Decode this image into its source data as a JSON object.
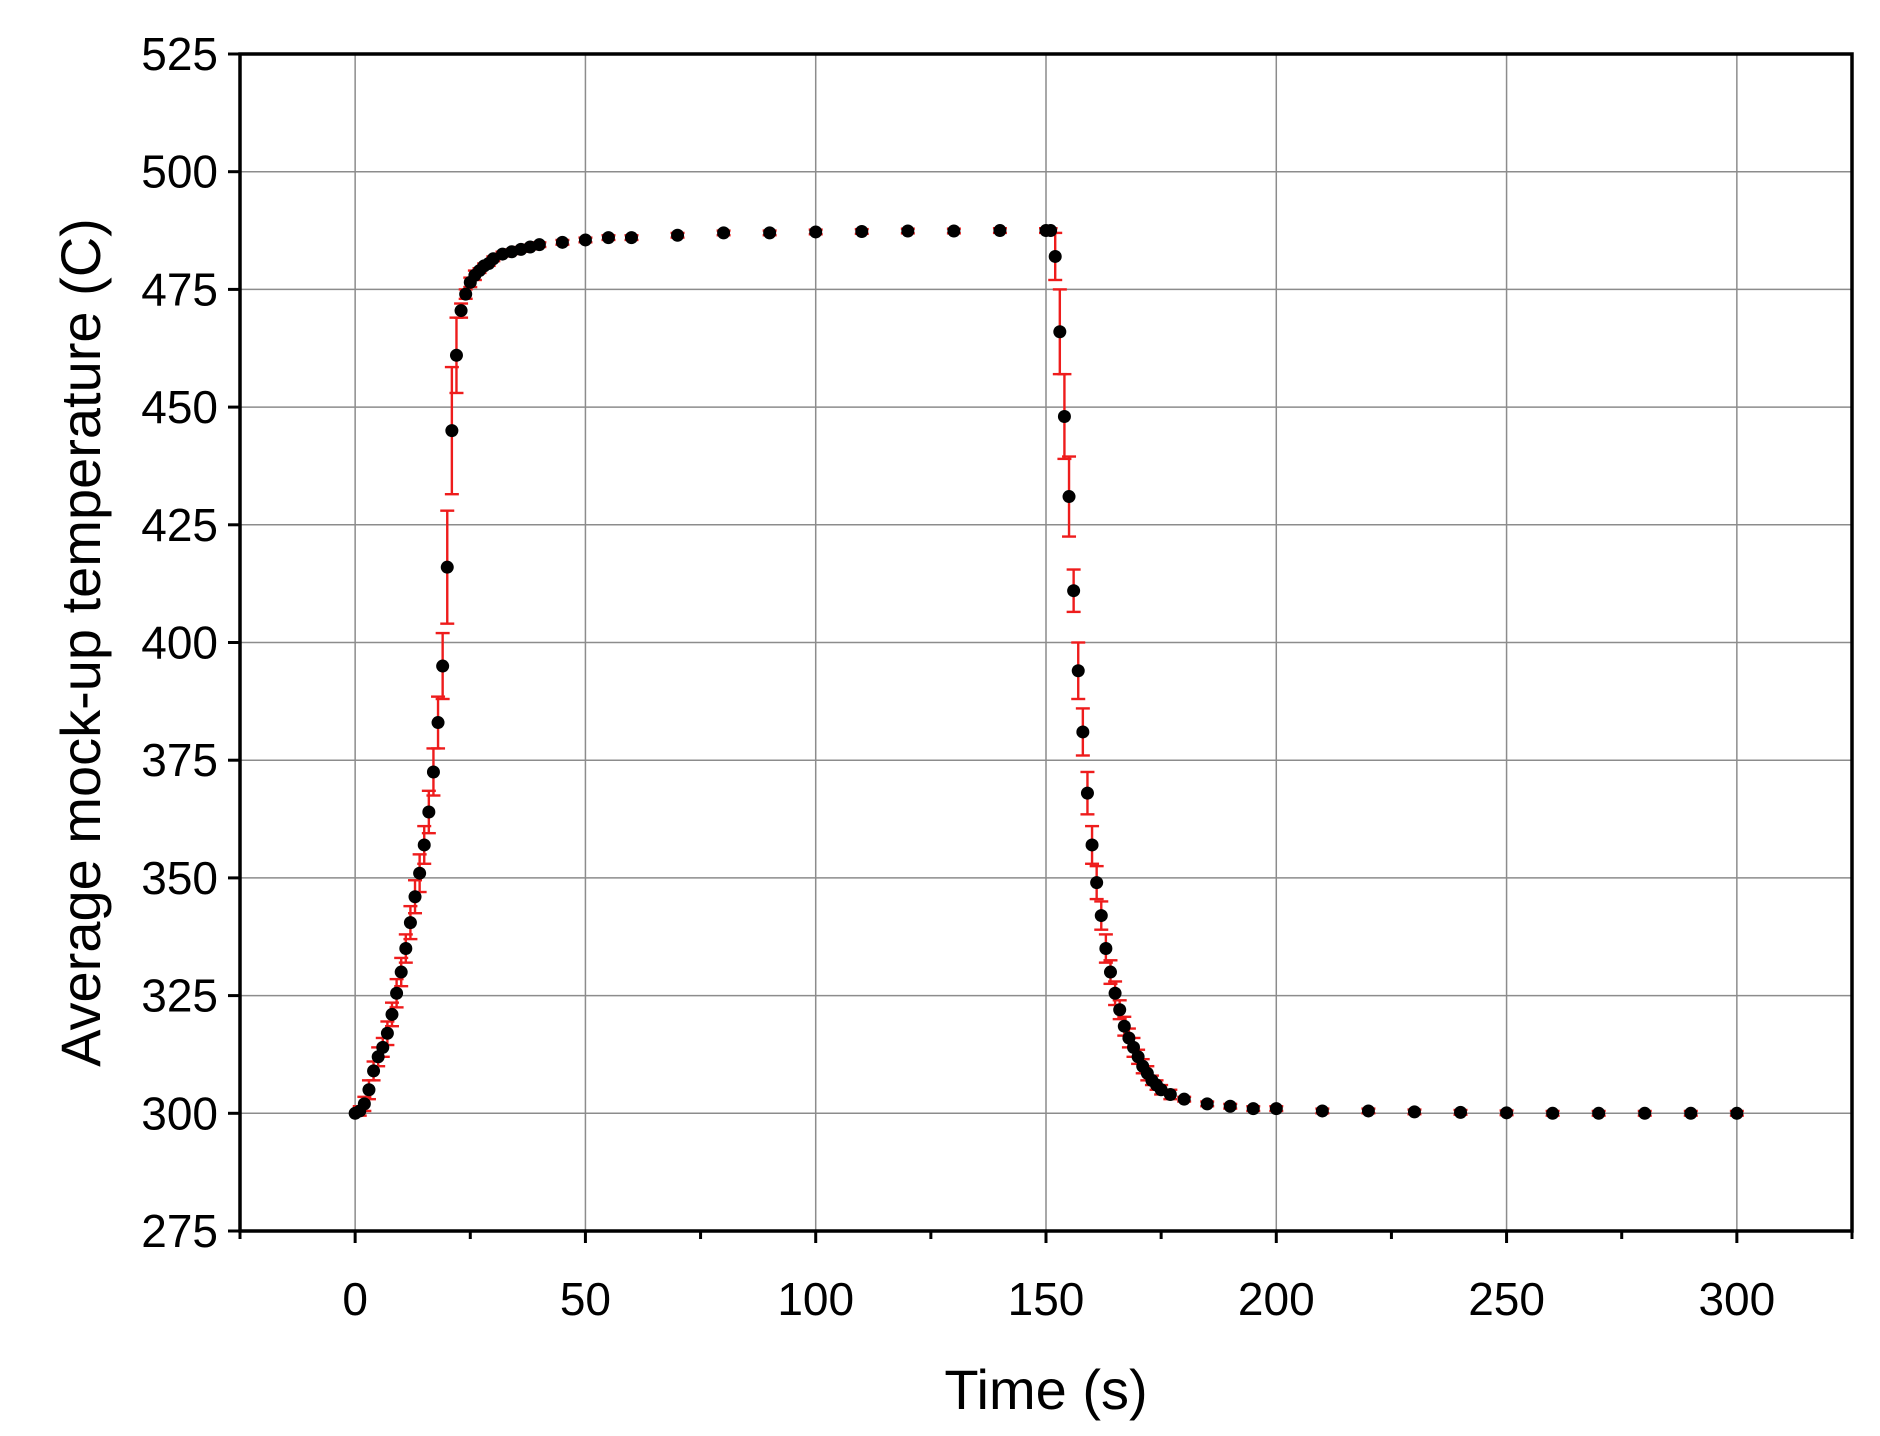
{
  "chart_data": {
    "type": "scatter",
    "xlabel": "Time (s)",
    "ylabel": "Average mock-up temperature (C)",
    "xlim": [
      -25,
      325
    ],
    "ylim": [
      275,
      525
    ],
    "x_ticks": [
      0,
      50,
      100,
      150,
      200,
      250,
      300
    ],
    "y_ticks": [
      275,
      300,
      325,
      350,
      375,
      400,
      425,
      450,
      475,
      500,
      525
    ],
    "grid": true,
    "marker_color": "#000000",
    "error_bar_color": "#ee1c1c",
    "series": [
      {
        "x": [
          0,
          1,
          2,
          3,
          4,
          5,
          6,
          7,
          8,
          9,
          10,
          11,
          12,
          13,
          14,
          15,
          16,
          17,
          18,
          19,
          20,
          21,
          22,
          23,
          24,
          25,
          26,
          27,
          28,
          29,
          30,
          32,
          34,
          36,
          38,
          40,
          45,
          50,
          55,
          60,
          70,
          80,
          90,
          100,
          110,
          120,
          130,
          140,
          150,
          151,
          152,
          153,
          154,
          155,
          156,
          157,
          158,
          159,
          160,
          161,
          162,
          163,
          164,
          165,
          166,
          167,
          168,
          169,
          170,
          171,
          172,
          173,
          174,
          175,
          177,
          180,
          185,
          190,
          195,
          200,
          210,
          220,
          230,
          240,
          250,
          260,
          270,
          280,
          290,
          300
        ],
        "y": [
          300,
          300.5,
          302,
          305,
          309,
          312,
          314,
          317,
          321,
          325.5,
          330,
          335,
          340.5,
          346,
          351,
          357,
          364,
          372.5,
          383,
          395,
          416,
          445,
          461,
          470.5,
          474,
          476.5,
          478,
          479,
          480,
          480.5,
          481.5,
          482.5,
          483,
          483.5,
          484,
          484.5,
          485,
          485.5,
          486,
          486,
          486.5,
          487,
          487,
          487.2,
          487.3,
          487.4,
          487.4,
          487.5,
          487.5,
          487.5,
          482,
          466,
          448,
          431,
          411,
          394,
          381,
          368,
          357,
          349,
          342,
          335,
          330,
          325.5,
          322,
          318.5,
          316,
          314,
          312,
          310,
          308.5,
          307,
          306,
          305,
          304,
          303,
          302,
          301.5,
          301,
          301,
          300.5,
          300.5,
          300.3,
          300.2,
          300.1,
          300,
          300,
          300,
          300,
          300
        ],
        "err": [
          0,
          1,
          1.5,
          2,
          2,
          2,
          2,
          2.5,
          2.5,
          3,
          3,
          3,
          3.5,
          3.5,
          4,
          4,
          4.5,
          5,
          5.5,
          7,
          12,
          13.5,
          8,
          1.5,
          1,
          1,
          1,
          0.5,
          0.5,
          0.5,
          0.5,
          0.5,
          0.5,
          0.5,
          0.5,
          0.5,
          0.5,
          0.5,
          0.5,
          0.5,
          0.5,
          0.5,
          0.5,
          0.5,
          0.5,
          0.5,
          0.5,
          0.5,
          0.5,
          0.5,
          5,
          9,
          9,
          8.5,
          4.5,
          6,
          5,
          4.5,
          4,
          3.5,
          3,
          3,
          2.5,
          2.5,
          2,
          2,
          2,
          2,
          1.5,
          1.5,
          1.5,
          1,
          1,
          1,
          1,
          0.5,
          0.5,
          0.5,
          0.5,
          0.5,
          0.5,
          0.5,
          0.5,
          0.5,
          0.5,
          0.5,
          0.5,
          0.5,
          0.5,
          0.5
        ]
      }
    ]
  }
}
